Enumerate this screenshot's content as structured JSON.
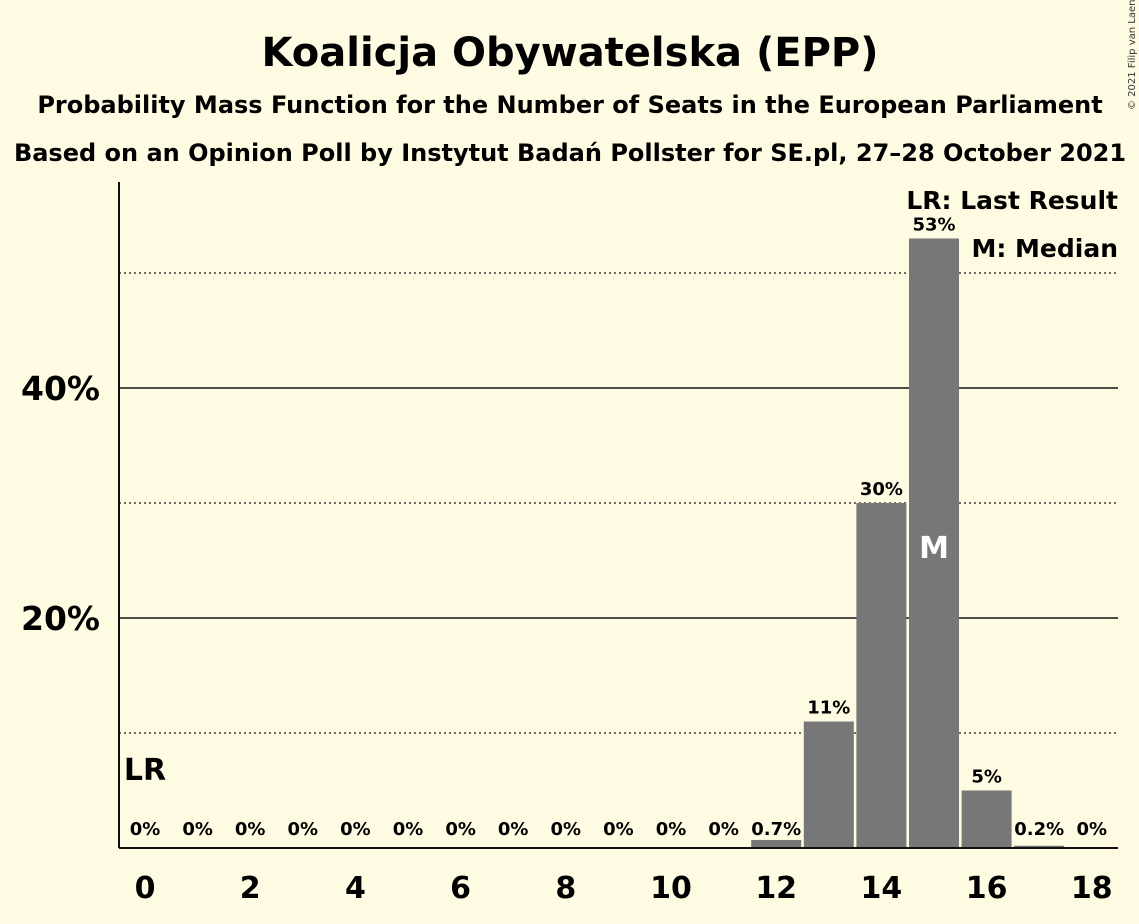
{
  "chart_data": {
    "type": "bar",
    "title": "Koalicja Obywatelska (EPP)",
    "subtitle": "Probability Mass Function for the Number of Seats in the European Parliament",
    "subtitle2": "Based on an Opinion Poll by Instytut Badań Pollster for SE.pl, 27–28 October 2021",
    "copyright": "© 2021 Filip van Laenen",
    "x": [
      0,
      1,
      2,
      3,
      4,
      5,
      6,
      7,
      8,
      9,
      10,
      11,
      12,
      13,
      14,
      15,
      16,
      17,
      18
    ],
    "values": [
      0,
      0,
      0,
      0,
      0,
      0,
      0,
      0,
      0,
      0,
      0,
      0,
      0.7,
      11,
      30,
      53,
      5,
      0.2,
      0
    ],
    "value_labels": [
      "0%",
      "0%",
      "0%",
      "0%",
      "0%",
      "0%",
      "0%",
      "0%",
      "0%",
      "0%",
      "0%",
      "0%",
      "0.7%",
      "11%",
      "30%",
      "53%",
      "5%",
      "0.2%",
      "0%"
    ],
    "xticks": [
      0,
      2,
      4,
      6,
      8,
      10,
      12,
      14,
      16,
      18
    ],
    "yticks": [
      {
        "value": 20,
        "label": "20%"
      },
      {
        "value": 40,
        "label": "40%"
      }
    ],
    "minor_gridlines": [
      10,
      30,
      50
    ],
    "ylim": [
      0,
      58
    ],
    "last_result": {
      "x": 0,
      "label": "LR"
    },
    "median": {
      "x": 15,
      "label": "M"
    },
    "legend": [
      "LR: Last Result",
      "M: Median"
    ],
    "legend_position": "top-right",
    "bar_color": "#777777"
  }
}
